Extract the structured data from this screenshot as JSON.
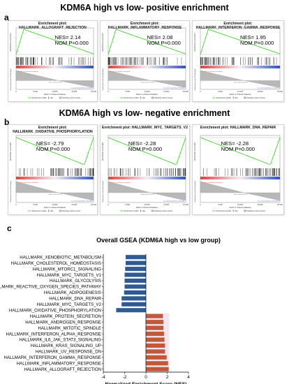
{
  "section_a": {
    "letter": "a",
    "title": "KDM6A high vs low- positive enrichment"
  },
  "section_b": {
    "letter": "b",
    "title": "KDM6A high vs low- negative enrichment"
  },
  "section_c": {
    "letter": "c"
  },
  "gsea_panels": [
    {
      "title": "Enrichment plot: HALLMARK_ALLOGRAFT_REJECTION",
      "nes": "NES= 2.14",
      "nom": "NOM P=0.000",
      "direction": "positive"
    },
    {
      "title": "Enrichment plot: HALLMARK_INFLAMMATORY_RESPONSE",
      "nes": "NES= 2.08",
      "nom": "NOM P=0.000",
      "direction": "positive"
    },
    {
      "title": "Enrichment plot: HALLMARK_INTERFERON_GAMMA_RESPONSE",
      "nes": "NES= 1.95",
      "nom": "NOM P=0.000",
      "direction": "positive"
    },
    {
      "title": "Enrichment plot:\nHALLMARK_OXIDATIVE_PHOSPHORYLATION",
      "nes": "NES= -2.79",
      "nom": "NOM P=0.000",
      "direction": "negative"
    },
    {
      "title": "Enrichment plot: HALLMARK_MYC_TARGETS_V2",
      "nes": "NES= -2.28",
      "nom": "NOM P=0.000",
      "direction": "negative"
    },
    {
      "title": "Enrichment plot: HALLMARK_DNA_REPAIR",
      "nes": "NES= -2.28",
      "nom": "NOM P=0.000",
      "direction": "negative"
    }
  ],
  "gsea_common": {
    "ylabel_es": "Enrichment score (ES)",
    "ylabel_rank": "Ranked list metric (PreRanked)",
    "xlabel": "Rank in Ordered Dataset",
    "x_ticks": [
      "0",
      "5,000",
      "10,000",
      "15,000",
      "20,000"
    ],
    "legend_profile": "Enrichment profile",
    "legend_hits": "Hits",
    "legend_ranking": "Ranking metric scores",
    "zero_cross": "Zero cross at 11773",
    "pos_label": "'na_pos' (positively correlated)",
    "neg_label": "'na_neg' (negatively correlated)",
    "colors": {
      "profile": "#3fd62a",
      "hits": "#111111",
      "pos": "#e04040",
      "neg": "#3050c0",
      "rank_fill": "#b8b8b8"
    }
  },
  "chart_data": {
    "type": "bar",
    "orientation": "horizontal",
    "title": "Overall GSEA (KDM6A high vs low group)",
    "xlabel": "Normalized Enrichment Score (NES)",
    "xlim": [
      -4,
      4
    ],
    "x_ticks": [
      -4,
      -2,
      0,
      2,
      4
    ],
    "categories": [
      "HALLMARK_XENOBIOTIC_METABOLISM",
      "HALLMARK_CHOLESTEROL_HOMEOSTASIS",
      "HALLMARK_MTORC1_SIGNALING",
      "HALLMARK_MYC_TARGETS_V1",
      "HALLMARK_GLYCOLYSIS",
      "HALLMARK_REACTIVE_OXYGEN_SPECIES_PATHWAY",
      "HALLMARK_ADIPOGENESIS",
      "HALLMARK_DNA_REPAIR",
      "HALLMARK_MYC_TARGETS_V2",
      "HALLMARK_OXIDATIVE_PHOSPHORYLATION",
      "HALLMARK_PROTEIN_SECRETION",
      "HALLMARK_ANDROGEN_RESPONSE",
      "HALLMARK_MITOTIC_SPINDLE",
      "HALLMARK_INTERFERON_ALPHA_RESPONSE",
      "HALLMARK_IL6_JAK_STAT3_SIGNALING",
      "HALLMARK_KRAS_SIGNALING_UP",
      "HALLMARK_UV_RESPONSE_DN",
      "HALLMARK_INTERFERON_GAMMA_RESPONSE",
      "HALLMARK_INFLAMMATORY_RESPONSE",
      "HALLMARK_ALLOGRAFT_REJECTION"
    ],
    "values": [
      -1.9,
      -1.9,
      -1.95,
      -2.0,
      -2.0,
      -2.0,
      -2.05,
      -2.28,
      -2.28,
      -2.79,
      1.6,
      1.65,
      1.65,
      1.7,
      1.75,
      1.8,
      1.8,
      1.95,
      2.08,
      2.14
    ],
    "colors": {
      "negative": "#2f5a93",
      "positive": "#c0593a",
      "highlight": "#f5e6ef"
    }
  }
}
